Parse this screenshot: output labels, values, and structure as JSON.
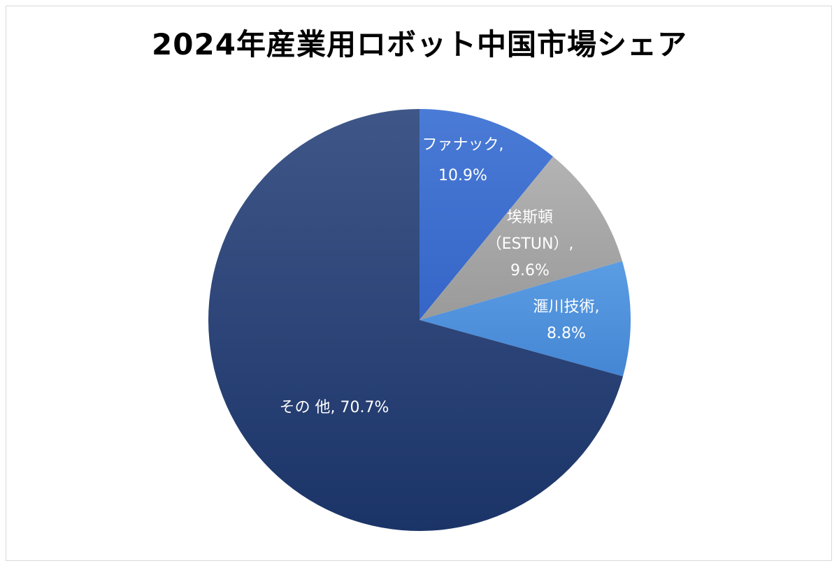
{
  "chart_data": {
    "type": "pie",
    "title": "2024年産業用ロボット中国市場シェア",
    "slices": [
      {
        "name": "ファナック",
        "value": 10.9,
        "label_lines": [
          "ファナック,",
          "10.9%"
        ],
        "color": "#3a6fcf"
      },
      {
        "name": "埃斯頓（ESTUN）",
        "value": 9.6,
        "label_lines": [
          "埃斯頓",
          "（ESTUN）,",
          "9.6%"
        ],
        "color": "#a6a6a6"
      },
      {
        "name": "滙川技術",
        "value": 8.8,
        "label_lines": [
          "滙川技術,",
          "8.8%"
        ],
        "color": "#4a90db"
      },
      {
        "name": "その他",
        "value": 70.7,
        "label_lines": [
          "その 他, 70.7%"
        ],
        "color": "#1f3a73"
      }
    ],
    "start": "12 o'clock",
    "direction": "clockwise",
    "legend": "none"
  }
}
